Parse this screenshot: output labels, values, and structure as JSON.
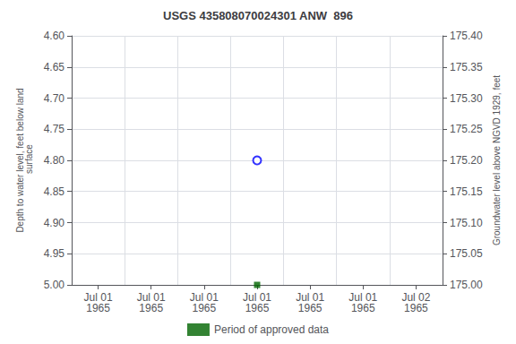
{
  "chart_data": {
    "type": "scatter",
    "title": "USGS 435808070024301 ANW  896",
    "y_label": "Depth to water level, feet below land\n surface",
    "y2_label": "Groundwater level above NGVD 1929, feet",
    "categories": [
      "Jul 01\n1965",
      "Jul 01\n1965",
      "Jul 01\n1965",
      "Jul 01\n1965",
      "Jul 01\n1965",
      "Jul 01\n1965",
      "Jul 02\n1965"
    ],
    "series": [
      {
        "color": "blue",
        "marker": "open_circle",
        "values": [
          null,
          null,
          null,
          4.8,
          null,
          null,
          null
        ]
      },
      {
        "name": "Period of approved data",
        "color": "#006400",
        "marker": "square",
        "values": [
          null,
          null,
          null,
          5.0,
          null,
          null,
          null
        ]
      }
    ],
    "ylim": [
      5.0,
      4.6
    ],
    "yticks": [
      {
        "value": 4.6,
        "label": "4.60"
      },
      4.65,
      {
        "value": 4.7,
        "label": "4.70"
      },
      4.75,
      {
        "value": 4.8,
        "label": "4.80"
      },
      4.85,
      {
        "value": 4.9,
        "label": "4.90"
      },
      4.95,
      {
        "value": 5.0,
        "label": "5.00"
      }
    ],
    "y2lim": [
      175.0,
      175.4
    ],
    "y2ticks": [
      {
        "value": 175.0,
        "label": "175.00"
      },
      175.05,
      {
        "value": 175.1,
        "label": "175.10"
      },
      175.15,
      {
        "value": 175.2,
        "label": "175.20"
      },
      175.25,
      {
        "value": 175.3,
        "label": "175.30"
      },
      175.35,
      {
        "value": 175.4,
        "label": "175.40"
      }
    ],
    "grid": true,
    "legend": "bottom"
  }
}
